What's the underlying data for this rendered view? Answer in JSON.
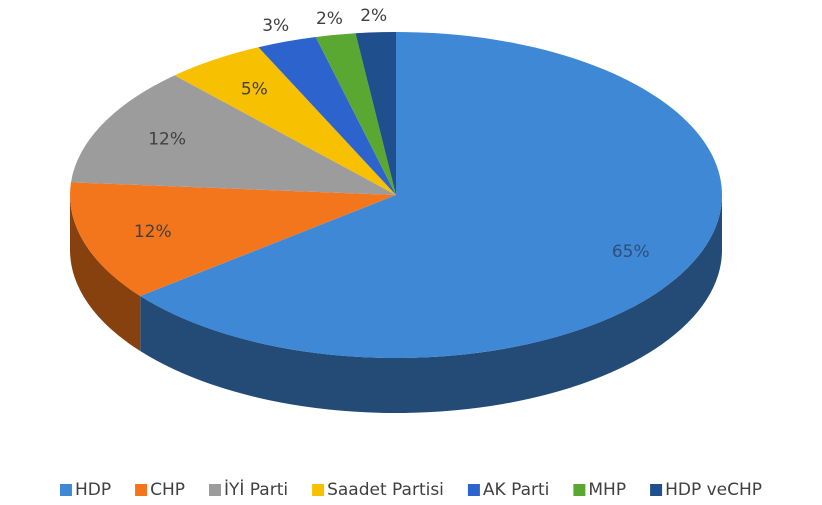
{
  "chart_data": {
    "type": "pie3d",
    "categories": [
      "HDP",
      "CHP",
      "İYİ Parti",
      "Saadet Partisi",
      "AK Parti",
      "MHP",
      "HDP veCHP"
    ],
    "values": [
      65,
      12,
      12,
      5,
      3,
      2,
      2
    ],
    "value_labels": [
      "65%",
      "12%",
      "12%",
      "5%",
      "3%",
      "2%",
      "2%"
    ],
    "colors": [
      "#3f88d6",
      "#f4761c",
      "#9c9c9c",
      "#f7c000",
      "#2c63cc",
      "#5aa832",
      "#1f4f8c"
    ],
    "legend": "bottom"
  }
}
